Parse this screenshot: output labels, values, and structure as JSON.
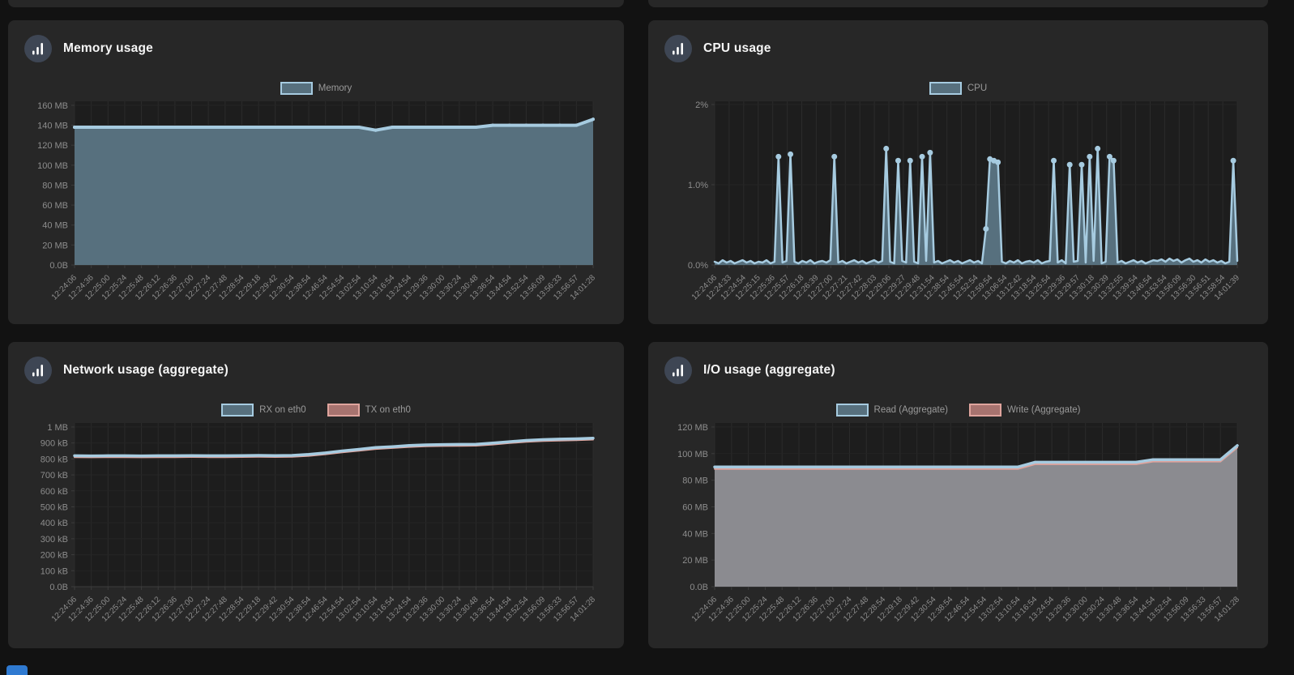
{
  "page": {
    "kind": "container-stats-dashboard"
  },
  "colors": {
    "page_bg": "#121212",
    "panel_bg": "#272727",
    "plot_bg": "#1d1d1d",
    "grid_v": "#2b2b2b",
    "grid_h": "#252525",
    "axis_line": "#3c3c3c",
    "axis_text": "#8d8d8d",
    "legend_text": "#9a9a9a",
    "title_text": "#f5f5f5",
    "icon_circle": "#3e4654",
    "blue_line": "#a6cbe0",
    "slate_fill": "#57707e",
    "salmon_line": "#dfa49d",
    "salmon_swatch_fill": "#a7736f",
    "gray_fill": "#8b8b90",
    "partial_button": "#2f7ad1"
  },
  "panels": [
    {
      "id": "memory",
      "title": "Memory usage",
      "icon": "bar-chart-icon",
      "legend": [
        {
          "label": "Memory",
          "fill": "#57707e",
          "border": "#a6cbe0"
        }
      ],
      "chart_data": {
        "type": "area",
        "title": "Memory usage",
        "ylabel": "",
        "xlabel": "",
        "ymax": 164,
        "yticks": [
          {
            "v": 0,
            "label": "0.0B"
          },
          {
            "v": 20,
            "label": "20 MB"
          },
          {
            "v": 40,
            "label": "40 MB"
          },
          {
            "v": 60,
            "label": "60 MB"
          },
          {
            "v": 80,
            "label": "80 MB"
          },
          {
            "v": 100,
            "label": "100 MB"
          },
          {
            "v": 120,
            "label": "120 MB"
          },
          {
            "v": 140,
            "label": "140 MB"
          },
          {
            "v": 160,
            "label": "160 MB"
          }
        ],
        "x_labels": [
          "12:24:06",
          "12:24:36",
          "12:25:00",
          "12:25:24",
          "12:25:48",
          "12:26:12",
          "12:26:36",
          "12:27:00",
          "12:27:24",
          "12:27:48",
          "12:28:54",
          "12:29:18",
          "12:29:42",
          "12:30:54",
          "12:38:54",
          "12:46:54",
          "12:54:54",
          "13:02:54",
          "13:10:54",
          "13:16:54",
          "13:24:54",
          "13:29:36",
          "13:30:00",
          "13:30:24",
          "13:30:48",
          "13:36:54",
          "13:44:54",
          "13:52:54",
          "13:56:09",
          "13:56:33",
          "13:56:57",
          "14:01:28"
        ],
        "unit": "MB",
        "series": [
          {
            "name": "Memory",
            "color": "#a6cbe0",
            "fill": "#57707e",
            "width": 4,
            "markers": "all",
            "values": [
              138,
              138,
              138,
              138,
              138,
              138,
              138,
              138,
              138,
              138,
              138,
              138,
              138,
              138,
              138,
              138,
              138,
              138,
              135,
              138,
              138,
              138,
              138,
              138,
              138,
              140,
              140,
              140,
              140,
              140,
              140,
              146
            ]
          }
        ]
      }
    },
    {
      "id": "cpu",
      "title": "CPU usage",
      "icon": "bar-chart-icon",
      "legend": [
        {
          "label": "CPU",
          "fill": "#57707e",
          "border": "#a6cbe0"
        }
      ],
      "chart_data": {
        "type": "line",
        "title": "CPU usage",
        "ylabel": "",
        "xlabel": "",
        "ymax": 2.04,
        "yticks": [
          {
            "v": 0,
            "label": "0.0%"
          },
          {
            "v": 1,
            "label": "1.0%"
          },
          {
            "v": 2,
            "label": "2%"
          }
        ],
        "x_labels": [
          "12:24:06",
          "12:24:33",
          "12:24:54",
          "12:25:15",
          "12:25:36",
          "12:25:57",
          "12:26:18",
          "12:26:39",
          "12:27:00",
          "12:27:21",
          "12:27:42",
          "12:28:03",
          "12:29:06",
          "12:29:27",
          "12:29:48",
          "12:31:54",
          "12:38:54",
          "12:45:54",
          "12:52:54",
          "12:59:54",
          "13:06:54",
          "13:12:42",
          "13:18:54",
          "13:25:54",
          "13:29:36",
          "13:29:57",
          "13:30:18",
          "13:30:39",
          "13:32:55",
          "13:39:54",
          "13:46:54",
          "13:53:54",
          "13:56:09",
          "13:56:30",
          "13:56:51",
          "13:58:54",
          "14:01:39"
        ],
        "unit": "%",
        "series": [
          {
            "name": "CPU",
            "color": "#a6cbe0",
            "fill": "#57707e",
            "width": 2.5,
            "markers": "peaks",
            "values": [
              0.04,
              0.02,
              0.06,
              0.03,
              0.05,
              0.02,
              0.04,
              0.06,
              0.03,
              0.05,
              0.02,
              0.04,
              0.03,
              0.06,
              0.02,
              0.04,
              1.35,
              0.03,
              0.05,
              1.38,
              0.04,
              0.02,
              0.05,
              0.03,
              0.06,
              0.02,
              0.04,
              0.05,
              0.03,
              0.06,
              1.35,
              0.03,
              0.05,
              0.02,
              0.04,
              0.06,
              0.03,
              0.05,
              0.02,
              0.04,
              0.06,
              0.03,
              0.05,
              1.45,
              0.04,
              0.02,
              1.3,
              0.05,
              0.03,
              1.3,
              0.04,
              0.02,
              1.35,
              0.05,
              1.4,
              0.03,
              0.05,
              0.02,
              0.04,
              0.06,
              0.03,
              0.05,
              0.02,
              0.04,
              0.06,
              0.03,
              0.05,
              0.02,
              0.45,
              1.32,
              1.3,
              1.28,
              0.04,
              0.02,
              0.05,
              0.03,
              0.06,
              0.02,
              0.04,
              0.05,
              0.03,
              0.06,
              0.02,
              0.04,
              0.05,
              1.3,
              0.03,
              0.06,
              0.02,
              1.25,
              0.04,
              0.05,
              1.25,
              0.03,
              1.35,
              0.05,
              1.45,
              0.02,
              0.04,
              1.35,
              1.3,
              0.03,
              0.05,
              0.02,
              0.04,
              0.06,
              0.03,
              0.05,
              0.02,
              0.04,
              0.06,
              0.05,
              0.07,
              0.04,
              0.08,
              0.05,
              0.07,
              0.03,
              0.06,
              0.08,
              0.04,
              0.06,
              0.03,
              0.07,
              0.04,
              0.06,
              0.03,
              0.05,
              0.02,
              0.04,
              1.3,
              0.05
            ]
          }
        ]
      }
    },
    {
      "id": "network",
      "title": "Network usage (aggregate)",
      "icon": "bar-chart-icon",
      "legend": [
        {
          "label": "RX on eth0",
          "fill": "#57707e",
          "border": "#a6cbe0"
        },
        {
          "label": "TX on eth0",
          "fill": "#a7736f",
          "border": "#dfa49d"
        }
      ],
      "chart_data": {
        "type": "line",
        "title": "Network usage (aggregate)",
        "ylabel": "",
        "xlabel": "",
        "ymax": 1025,
        "yticks": [
          {
            "v": 0,
            "label": "0.0B"
          },
          {
            "v": 100,
            "label": "100 kB"
          },
          {
            "v": 200,
            "label": "200 kB"
          },
          {
            "v": 300,
            "label": "300 kB"
          },
          {
            "v": 400,
            "label": "400 kB"
          },
          {
            "v": 500,
            "label": "500 kB"
          },
          {
            "v": 600,
            "label": "600 kB"
          },
          {
            "v": 700,
            "label": "700 kB"
          },
          {
            "v": 800,
            "label": "800 kB"
          },
          {
            "v": 900,
            "label": "900 kB"
          },
          {
            "v": 1000,
            "label": "1 MB"
          }
        ],
        "x_labels": [
          "12:24:06",
          "12:24:36",
          "12:25:00",
          "12:25:24",
          "12:25:48",
          "12:26:12",
          "12:26:36",
          "12:27:00",
          "12:27:24",
          "12:27:48",
          "12:28:54",
          "12:29:18",
          "12:29:42",
          "12:30:54",
          "12:38:54",
          "12:46:54",
          "12:54:54",
          "13:02:54",
          "13:10:54",
          "13:16:54",
          "13:24:54",
          "13:29:36",
          "13:30:00",
          "13:30:24",
          "13:30:48",
          "13:36:54",
          "13:44:54",
          "13:52:54",
          "13:56:09",
          "13:56:33",
          "13:56:57",
          "14:01:28"
        ],
        "unit": "kB",
        "series": [
          {
            "name": "TX on eth0",
            "color": "#dfa49d",
            "fill": null,
            "width": 2,
            "markers": null,
            "values": [
              811,
              810,
              811,
              811,
              810,
              811,
              811,
              812,
              811,
              811,
              812,
              813,
              812,
              813,
              819,
              829,
              841,
              851,
              862,
              868,
              875,
              879,
              881,
              882,
              883,
              890,
              899,
              907,
              912,
              915,
              917,
              921
            ]
          },
          {
            "name": "RX on eth0",
            "color": "#a6cbe0",
            "fill": null,
            "width": 3.5,
            "markers": null,
            "values": [
              820,
              819,
              820,
              820,
              819,
              820,
              820,
              821,
              820,
              820,
              821,
              822,
              821,
              822,
              828,
              838,
              850,
              860,
              871,
              877,
              884,
              888,
              890,
              891,
              892,
              899,
              908,
              916,
              921,
              924,
              926,
              930
            ]
          }
        ]
      }
    },
    {
      "id": "io",
      "title": "I/O usage (aggregate)",
      "icon": "bar-chart-icon",
      "legend": [
        {
          "label": "Read (Aggregate)",
          "fill": "#57707e",
          "border": "#a6cbe0"
        },
        {
          "label": "Write (Aggregate)",
          "fill": "#a7736f",
          "border": "#dfa49d"
        }
      ],
      "chart_data": {
        "type": "area",
        "title": "I/O usage (aggregate)",
        "ylabel": "",
        "xlabel": "",
        "ymax": 123,
        "yticks": [
          {
            "v": 0,
            "label": "0.0B"
          },
          {
            "v": 20,
            "label": "20 MB"
          },
          {
            "v": 40,
            "label": "40 MB"
          },
          {
            "v": 60,
            "label": "60 MB"
          },
          {
            "v": 80,
            "label": "80 MB"
          },
          {
            "v": 100,
            "label": "100 MB"
          },
          {
            "v": 120,
            "label": "120 MB"
          }
        ],
        "x_labels": [
          "12:24:06",
          "12:24:36",
          "12:25:00",
          "12:25:24",
          "12:25:48",
          "12:26:12",
          "12:26:36",
          "12:27:00",
          "12:27:24",
          "12:27:48",
          "12:28:54",
          "12:29:18",
          "12:29:42",
          "12:30:54",
          "12:38:54",
          "12:46:54",
          "12:54:54",
          "13:02:54",
          "13:10:54",
          "13:16:54",
          "13:24:54",
          "13:29:36",
          "13:30:00",
          "13:30:24",
          "13:30:48",
          "13:36:54",
          "13:44:54",
          "13:52:54",
          "13:56:09",
          "13:56:33",
          "13:56:57",
          "14:01:28"
        ],
        "unit": "MB",
        "series": [
          {
            "name": "Write (Aggregate)",
            "color": "#dfa49d",
            "fill": null,
            "width": 2,
            "markers": null,
            "values": [
              88.5,
              88.5,
              88.5,
              88.5,
              88.5,
              88.5,
              88.5,
              88.5,
              88.5,
              88.5,
              88.5,
              88.5,
              88.5,
              88.5,
              88.5,
              88.5,
              88.5,
              88.5,
              88.5,
              92,
              92,
              92,
              92,
              92,
              92,
              92,
              94,
              94,
              94,
              94,
              94,
              104.5
            ]
          },
          {
            "name": "Read (Aggregate)",
            "color": "#a6cbe0",
            "fill": "#8b8b90",
            "width": 3.5,
            "markers": null,
            "values": [
              90,
              90,
              90,
              90,
              90,
              90,
              90,
              90,
              90,
              90,
              90,
              90,
              90,
              90,
              90,
              90,
              90,
              90,
              90,
              93.5,
              93.5,
              93.5,
              93.5,
              93.5,
              93.5,
              93.5,
              95.5,
              95.5,
              95.5,
              95.5,
              95.5,
              106
            ]
          }
        ]
      }
    }
  ]
}
